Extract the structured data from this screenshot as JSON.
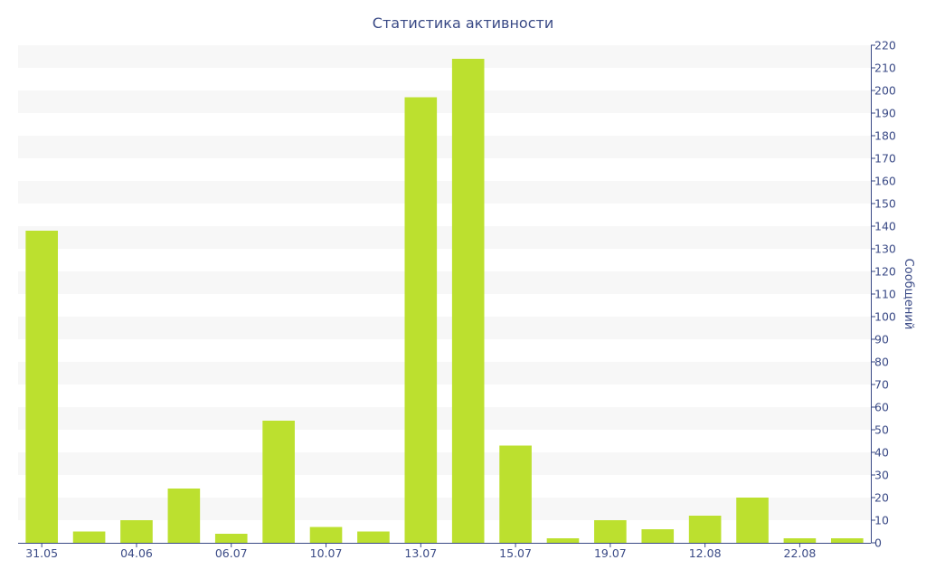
{
  "chart_data": {
    "type": "bar",
    "title": "Статистика активности",
    "xlabel": "",
    "ylabel": "Сообщений",
    "y_axis_side": "right",
    "ylim": [
      0,
      220
    ],
    "ytick_step": 10,
    "grid": "alternating horizontal bands",
    "bar_color": "#bce02f",
    "band_color": "#f7f7f7",
    "text_color": "#3a4a86",
    "categories": [
      "31.05",
      "",
      "04.06",
      "",
      "06.07",
      "",
      "10.07",
      "",
      "13.07",
      "",
      "15.07",
      "",
      "19.07",
      "",
      "12.08",
      "",
      "22.08",
      ""
    ],
    "values": [
      138,
      5,
      10,
      24,
      4,
      54,
      7,
      5,
      197,
      214,
      43,
      2,
      10,
      6,
      12,
      20,
      2,
      2
    ]
  }
}
